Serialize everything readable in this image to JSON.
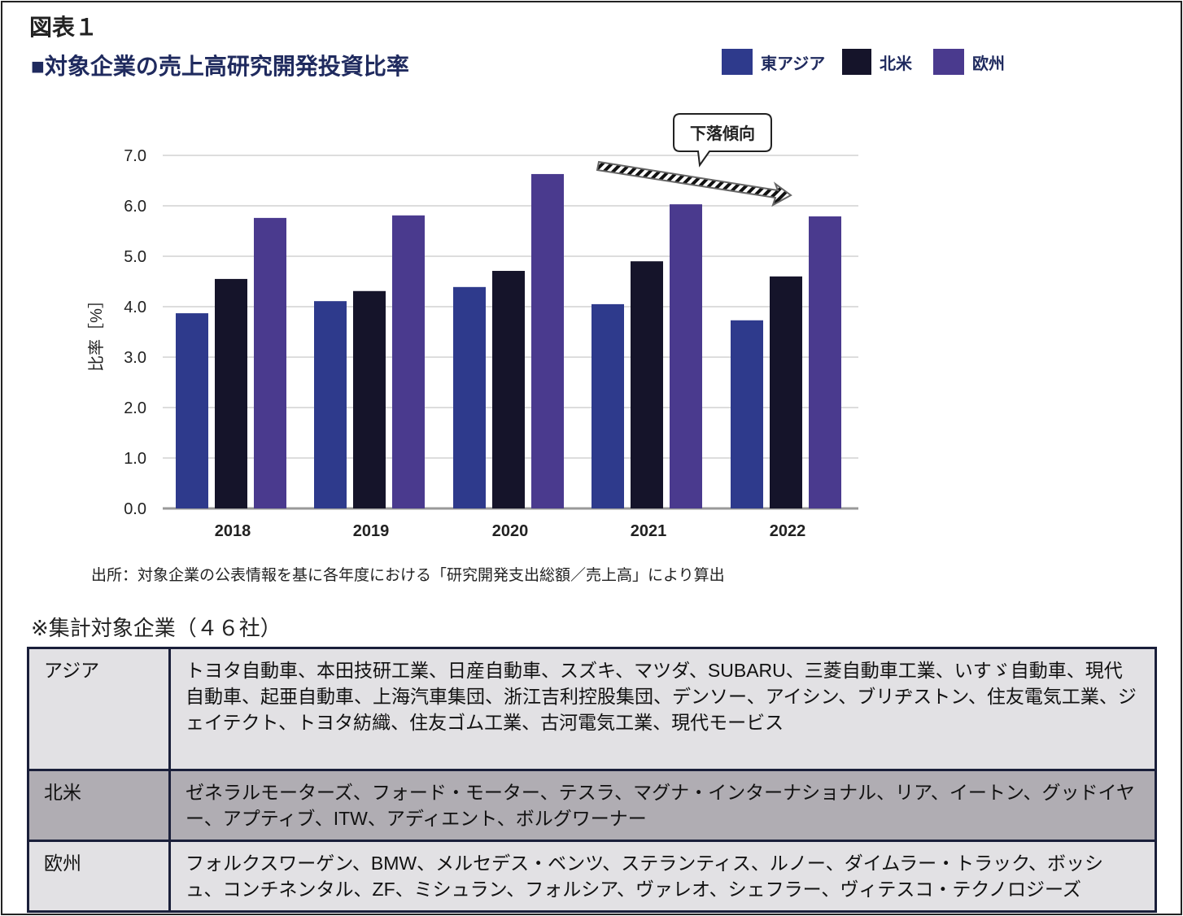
{
  "header": {
    "figure_label": "図表１",
    "title": "■対象企業の売上高研究開発投資比率"
  },
  "chart_data": {
    "type": "bar",
    "title": "対象企業の売上高研究開発投資比率",
    "categories": [
      "2018",
      "2019",
      "2020",
      "2021",
      "2022"
    ],
    "series": [
      {
        "name": "東アジア",
        "color": "#2e3a8c",
        "values": [
          3.87,
          4.11,
          4.39,
          4.05,
          3.73
        ]
      },
      {
        "name": "北米",
        "color": "#15142a",
        "values": [
          4.55,
          4.31,
          4.71,
          4.9,
          4.6
        ]
      },
      {
        "name": "欧州",
        "color": "#4a3a8e",
        "values": [
          5.76,
          5.81,
          6.63,
          6.03,
          5.79
        ]
      }
    ],
    "ylabel": "比率［%］",
    "ylim": [
      0,
      7
    ],
    "yticks": [
      "0.0",
      "1.0",
      "2.0",
      "3.0",
      "4.0",
      "5.0",
      "6.0",
      "7.0"
    ],
    "grid": true,
    "legend": "top-right",
    "annotation": "下落傾向"
  },
  "source": "出所：対象企業の公表情報を基に各年度における「研究開発支出総額／売上高」により算出",
  "note": "※集計対象企業（４６社）",
  "table": [
    {
      "region": "アジア",
      "companies": "トヨタ自動車、本田技研工業、日産自動車、スズキ、マツダ、SUBARU、三菱自動車工業、いすゞ自動車、現代自動車、起亜自動車、上海汽車集団、浙江吉利控股集団、デンソー、アイシン、ブリヂストン、住友電気工業、ジェイテクト、トヨタ紡織、住友ゴム工業、古河電気工業、現代モービス"
    },
    {
      "region": "北米",
      "companies": "ゼネラルモーターズ、フォード・モーター、テスラ、マグナ・インターナショナル、リア、イートン、グッドイヤー、アプティブ、ITW、アディエント、ボルグワーナー"
    },
    {
      "region": "欧州",
      "companies": "フォルクスワーゲン、BMW、メルセデス・ベンツ、ステランティス、ルノー、ダイムラー・トラック、ボッシュ、コンチネンタル、ZF、ミシュラン、フォルシア、ヴァレオ、シェフラー、ヴィテスコ・テクノロジーズ"
    }
  ]
}
